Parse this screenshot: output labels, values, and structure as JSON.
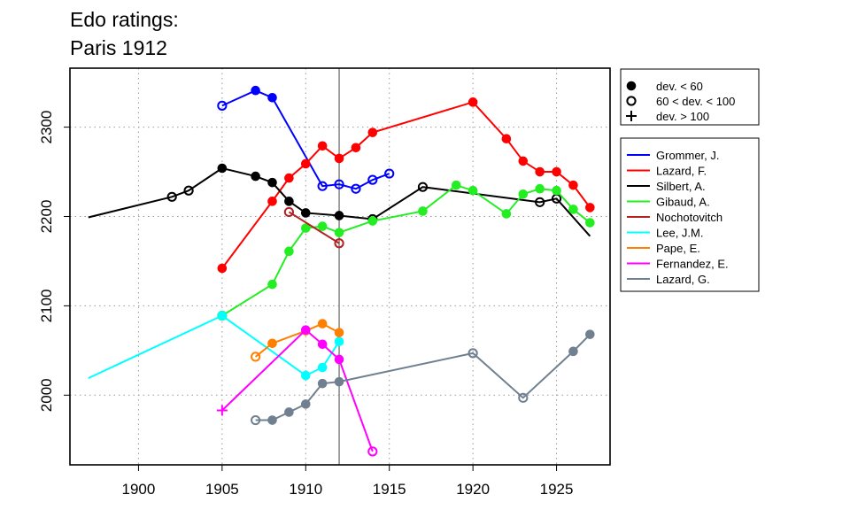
{
  "chart_data": {
    "type": "line",
    "title_lines": [
      "Edo ratings:",
      "Paris 1912"
    ],
    "xlabel": "",
    "ylabel": "",
    "xlim": [
      1895.9,
      1928.2
    ],
    "ylim": [
      1922,
      2366
    ],
    "x_ticks": [
      1900,
      1905,
      1910,
      1915,
      1920,
      1925
    ],
    "y_ticks": [
      2000,
      2100,
      2200,
      2300
    ],
    "grid": true,
    "reference_line_x": 1912,
    "marker_legend": [
      {
        "label": "dev. < 60",
        "marker": "filled"
      },
      {
        "label": "60 < dev. < 100",
        "marker": "open"
      },
      {
        "label": "dev. > 100",
        "marker": "plus"
      }
    ],
    "series": [
      {
        "name": "Grommer, J.",
        "color": "#0000ff",
        "points": [
          {
            "x": 1905,
            "y": 2324,
            "m": "open"
          },
          {
            "x": 1907,
            "y": 2341,
            "m": "filled"
          },
          {
            "x": 1908,
            "y": 2333,
            "m": "filled"
          },
          {
            "x": 1911,
            "y": 2234,
            "m": "open"
          },
          {
            "x": 1912,
            "y": 2236,
            "m": "open"
          },
          {
            "x": 1913,
            "y": 2231,
            "m": "open"
          },
          {
            "x": 1914,
            "y": 2241,
            "m": "open"
          },
          {
            "x": 1915,
            "y": 2248,
            "m": "open"
          }
        ]
      },
      {
        "name": "Lazard, F.",
        "color": "#ff0000",
        "points": [
          {
            "x": 1905,
            "y": 2142,
            "m": "filled"
          },
          {
            "x": 1908,
            "y": 2217,
            "m": "filled"
          },
          {
            "x": 1909,
            "y": 2243,
            "m": "filled"
          },
          {
            "x": 1910,
            "y": 2259,
            "m": "filled"
          },
          {
            "x": 1911,
            "y": 2279,
            "m": "filled"
          },
          {
            "x": 1912,
            "y": 2265,
            "m": "filled"
          },
          {
            "x": 1913,
            "y": 2277,
            "m": "filled"
          },
          {
            "x": 1914,
            "y": 2294,
            "m": "filled"
          },
          {
            "x": 1920,
            "y": 2328,
            "m": "filled"
          },
          {
            "x": 1922,
            "y": 2287,
            "m": "filled"
          },
          {
            "x": 1923,
            "y": 2262,
            "m": "filled"
          },
          {
            "x": 1924,
            "y": 2250,
            "m": "filled"
          },
          {
            "x": 1925,
            "y": 2250,
            "m": "filled"
          },
          {
            "x": 1926,
            "y": 2235,
            "m": "filled"
          },
          {
            "x": 1927,
            "y": 2210,
            "m": "filled"
          }
        ]
      },
      {
        "name": "Silbert, A.",
        "color": "#000000",
        "points": [
          {
            "x": 1897,
            "y": 2199,
            "m": "none"
          },
          {
            "x": 1902,
            "y": 2222,
            "m": "open"
          },
          {
            "x": 1903,
            "y": 2229,
            "m": "open"
          },
          {
            "x": 1905,
            "y": 2254,
            "m": "filled"
          },
          {
            "x": 1907,
            "y": 2245,
            "m": "filled"
          },
          {
            "x": 1908,
            "y": 2238,
            "m": "filled"
          },
          {
            "x": 1909,
            "y": 2217,
            "m": "filled"
          },
          {
            "x": 1910,
            "y": 2204,
            "m": "filled"
          },
          {
            "x": 1912,
            "y": 2201,
            "m": "filled"
          },
          {
            "x": 1914,
            "y": 2197,
            "m": "open"
          },
          {
            "x": 1917,
            "y": 2233,
            "m": "open"
          },
          {
            "x": 1924,
            "y": 2216,
            "m": "open"
          },
          {
            "x": 1925,
            "y": 2220,
            "m": "open"
          },
          {
            "x": 1927,
            "y": 2178,
            "m": "none"
          }
        ]
      },
      {
        "name": "Gibaud, A.",
        "color": "#22ee22",
        "points": [
          {
            "x": 1905,
            "y": 2089,
            "m": "open"
          },
          {
            "x": 1908,
            "y": 2124,
            "m": "filled"
          },
          {
            "x": 1909,
            "y": 2161,
            "m": "filled"
          },
          {
            "x": 1910,
            "y": 2187,
            "m": "filled"
          },
          {
            "x": 1911,
            "y": 2189,
            "m": "filled"
          },
          {
            "x": 1912,
            "y": 2182,
            "m": "filled"
          },
          {
            "x": 1914,
            "y": 2195,
            "m": "filled"
          },
          {
            "x": 1917,
            "y": 2206,
            "m": "filled"
          },
          {
            "x": 1919,
            "y": 2235,
            "m": "filled"
          },
          {
            "x": 1920,
            "y": 2229,
            "m": "filled"
          },
          {
            "x": 1922,
            "y": 2203,
            "m": "filled"
          },
          {
            "x": 1923,
            "y": 2225,
            "m": "filled"
          },
          {
            "x": 1924,
            "y": 2231,
            "m": "filled"
          },
          {
            "x": 1925,
            "y": 2229,
            "m": "filled"
          },
          {
            "x": 1926,
            "y": 2208,
            "m": "filled"
          },
          {
            "x": 1927,
            "y": 2193,
            "m": "filled"
          }
        ]
      },
      {
        "name": "Nochotovitch",
        "color": "#b22222",
        "points": [
          {
            "x": 1909,
            "y": 2205,
            "m": "open"
          },
          {
            "x": 1912,
            "y": 2170,
            "m": "open"
          }
        ]
      },
      {
        "name": "Lee, J.M.",
        "color": "#00ffff",
        "points": [
          {
            "x": 1897,
            "y": 2019,
            "m": "none"
          },
          {
            "x": 1905,
            "y": 2089,
            "m": "filled"
          },
          {
            "x": 1910,
            "y": 2022,
            "m": "filled"
          },
          {
            "x": 1911,
            "y": 2031,
            "m": "filled"
          },
          {
            "x": 1912,
            "y": 2060,
            "m": "filled"
          }
        ]
      },
      {
        "name": "Pape, E.",
        "color": "#ff7f00",
        "points": [
          {
            "x": 1907,
            "y": 2043,
            "m": "open"
          },
          {
            "x": 1908,
            "y": 2058,
            "m": "filled"
          },
          {
            "x": 1910,
            "y": 2072,
            "m": "filled"
          },
          {
            "x": 1911,
            "y": 2080,
            "m": "filled"
          },
          {
            "x": 1912,
            "y": 2070,
            "m": "filled"
          }
        ]
      },
      {
        "name": "Fernandez, E.",
        "color": "#ff00ff",
        "points": [
          {
            "x": 1905,
            "y": 1983,
            "m": "plus"
          },
          {
            "x": 1910,
            "y": 2073,
            "m": "filled"
          },
          {
            "x": 1911,
            "y": 2057,
            "m": "filled"
          },
          {
            "x": 1912,
            "y": 2040,
            "m": "filled"
          },
          {
            "x": 1914,
            "y": 1937,
            "m": "open"
          }
        ]
      },
      {
        "name": "Lazard, G.",
        "color": "#708090",
        "points": [
          {
            "x": 1907,
            "y": 1972,
            "m": "open"
          },
          {
            "x": 1908,
            "y": 1972,
            "m": "filled"
          },
          {
            "x": 1909,
            "y": 1981,
            "m": "filled"
          },
          {
            "x": 1910,
            "y": 1990,
            "m": "filled"
          },
          {
            "x": 1911,
            "y": 2013,
            "m": "filled"
          },
          {
            "x": 1912,
            "y": 2015,
            "m": "filled"
          },
          {
            "x": 1920,
            "y": 2047,
            "m": "open"
          },
          {
            "x": 1923,
            "y": 1997,
            "m": "open"
          },
          {
            "x": 1926,
            "y": 2049,
            "m": "filled"
          },
          {
            "x": 1927,
            "y": 2068,
            "m": "filled"
          }
        ]
      }
    ]
  }
}
